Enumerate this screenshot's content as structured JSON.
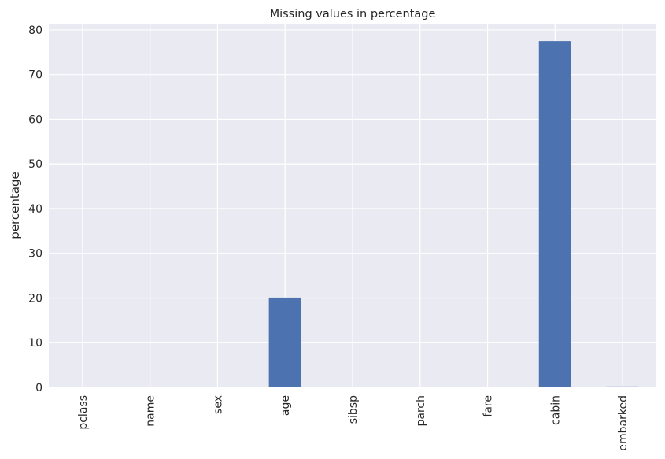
{
  "chart_data": {
    "type": "bar",
    "title": "Missing values in percentage",
    "xlabel": "",
    "ylabel": "percentage",
    "categories": [
      "pclass",
      "name",
      "sex",
      "age",
      "sibsp",
      "parch",
      "fare",
      "cabin",
      "embarked"
    ],
    "values": [
      0,
      0,
      0,
      20.1,
      0,
      0,
      0.1,
      77.5,
      0.2
    ],
    "ylim": [
      0,
      81.4
    ],
    "yticks": [
      0,
      10,
      20,
      30,
      40,
      50,
      60,
      70,
      80
    ],
    "grid": true,
    "legend": "none",
    "colors": {
      "bar": "#4c72b0",
      "background": "#eaeaf2",
      "grid": "#ffffff",
      "text": "#262626"
    }
  }
}
